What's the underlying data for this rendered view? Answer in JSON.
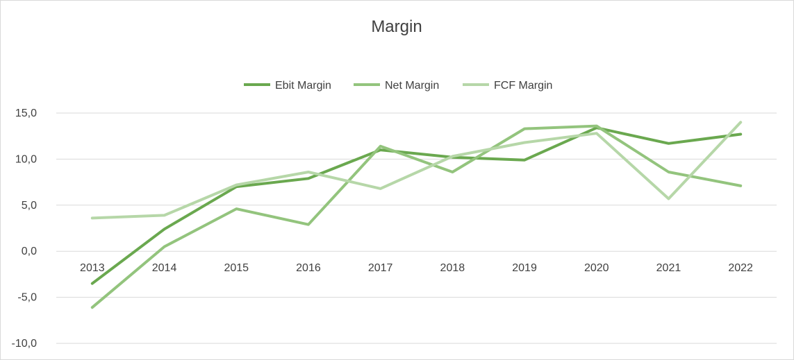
{
  "chart_data": {
    "type": "line",
    "title": "Margin",
    "xlabel": "",
    "ylabel": "",
    "categories": [
      "2013",
      "2014",
      "2015",
      "2016",
      "2017",
      "2018",
      "2019",
      "2020",
      "2021",
      "2022"
    ],
    "ylim": [
      -10,
      15
    ],
    "yticks": [
      15,
      10,
      5,
      0,
      -5,
      -10
    ],
    "ytick_labels": [
      "15,0",
      "10,0",
      "5,0",
      "0,0",
      "-5,0",
      "-10,0"
    ],
    "negative_tick_color": "#c00000",
    "grid": true,
    "legend_position": "top-center",
    "series": [
      {
        "name": "Ebit Margin",
        "color": "#6aa84f",
        "values": [
          -3.5,
          2.4,
          7.0,
          7.9,
          11.0,
          10.2,
          9.9,
          13.4,
          11.7,
          12.7
        ]
      },
      {
        "name": "Net Margin",
        "color": "#93c47d",
        "values": [
          -6.1,
          0.5,
          4.6,
          2.9,
          11.4,
          8.6,
          13.3,
          13.6,
          8.6,
          7.1
        ]
      },
      {
        "name": "FCF Margin",
        "color": "#b6d7a8",
        "values": [
          3.6,
          3.9,
          7.2,
          8.6,
          6.8,
          10.3,
          11.8,
          12.8,
          5.7,
          14.0
        ]
      }
    ]
  }
}
